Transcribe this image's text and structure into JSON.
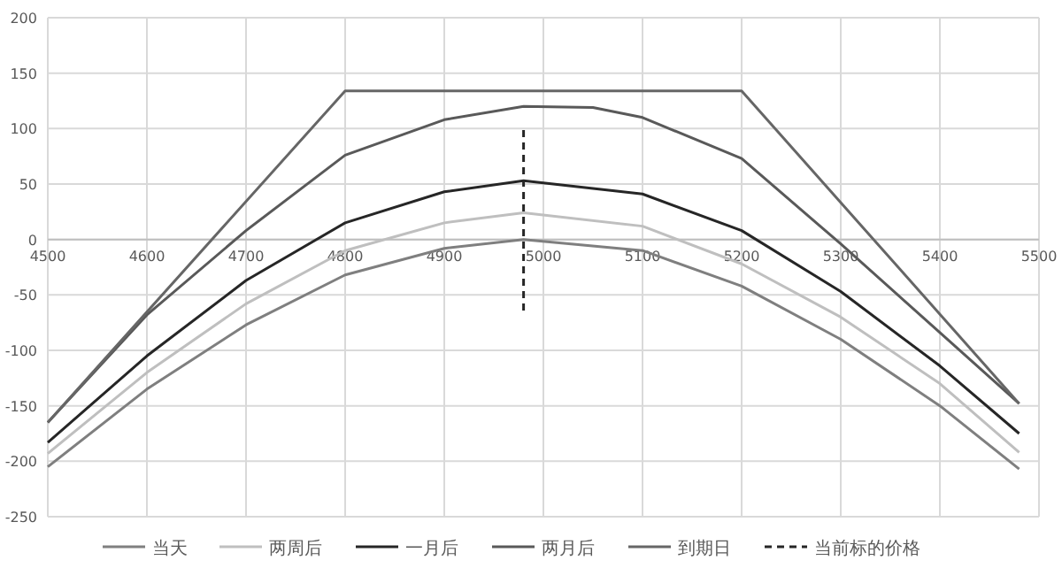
{
  "chart_data": {
    "type": "line",
    "xlim": [
      4500,
      5500
    ],
    "ylim": [
      -250,
      200
    ],
    "xticks": [
      4500,
      4600,
      4700,
      4800,
      4900,
      5000,
      5100,
      5200,
      5300,
      5400,
      5500
    ],
    "yticks": [
      -250,
      -200,
      -150,
      -100,
      -50,
      0,
      50,
      100,
      150,
      200
    ],
    "grid": true,
    "legend": "bottom",
    "series": [
      {
        "name": "当天",
        "color": "#7f7f7f",
        "x": [
          4500,
          4600,
          4700,
          4800,
          4900,
          4980,
          5100,
          5200,
          5300,
          5400,
          5480
        ],
        "values": [
          -205,
          -135,
          -77,
          -32,
          -8,
          0,
          -10,
          -42,
          -90,
          -150,
          -207
        ]
      },
      {
        "name": "两周后",
        "color": "#bfbfbf",
        "x": [
          4500,
          4600,
          4700,
          4800,
          4900,
          4980,
          5100,
          5200,
          5300,
          5400,
          5480
        ],
        "values": [
          -193,
          -120,
          -58,
          -10,
          15,
          24,
          12,
          -22,
          -70,
          -130,
          -192
        ]
      },
      {
        "name": "一月后",
        "color": "#262626",
        "x": [
          4500,
          4600,
          4700,
          4800,
          4900,
          4980,
          5100,
          5200,
          5300,
          5400,
          5480
        ],
        "values": [
          -183,
          -105,
          -37,
          15,
          43,
          53,
          41,
          8,
          -47,
          -114,
          -175
        ]
      },
      {
        "name": "两月后",
        "color": "#595959",
        "x": [
          4500,
          4600,
          4700,
          4800,
          4900,
          4980,
          5050,
          5100,
          5200,
          5300,
          5400,
          5480
        ],
        "values": [
          -165,
          -68,
          8,
          76,
          108,
          120,
          119,
          110,
          73,
          -4,
          -84,
          -148
        ]
      },
      {
        "name": "到期日",
        "color": "#666666",
        "x": [
          4500,
          4800,
          5200,
          5480
        ],
        "values": [
          -165,
          134,
          134,
          -148
        ]
      },
      {
        "name": "当前标的价格",
        "color": "#262626",
        "line_style": "dashed",
        "x": [
          4980,
          4980
        ],
        "values": [
          -64,
          100
        ]
      }
    ]
  }
}
